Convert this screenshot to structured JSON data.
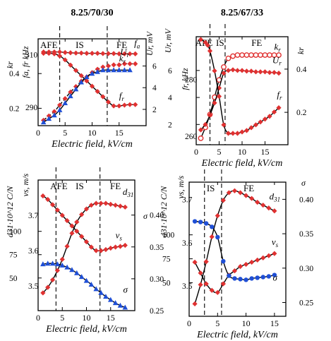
{
  "chart_data": [
    {
      "type": "line",
      "title": "8.25/70/30",
      "xlabel": "Electric field, kV/cm",
      "xlim": [
        0,
        20
      ],
      "xticks": [
        0,
        5,
        10,
        15
      ],
      "phases": [
        {
          "label": "AFE",
          "x": 2.0
        },
        {
          "label": "IS",
          "x": 7.7
        },
        {
          "label": "FE",
          "x": 15.5
        }
      ],
      "phase_boundaries": [
        4.0,
        12.8
      ],
      "axes": {
        "outer_left": {
          "label": "kr",
          "ylim": [
            0.1,
            0.6
          ],
          "ticks": [
            "0.2",
            "0.4"
          ],
          "tick_values": [
            0.2,
            0.4
          ]
        },
        "inner_left": {
          "label": "fa, fr kHz",
          "ylim": [
            283,
            316
          ],
          "ticks": [
            "290",
            "310"
          ],
          "tick_values": [
            290,
            310
          ]
        },
        "right": {
          "label": "Ur, mV",
          "ylim": [
            0.5,
            8.5
          ],
          "ticks": [
            "2",
            "4",
            "6"
          ],
          "tick_values": [
            2,
            4,
            6
          ]
        }
      },
      "series": [
        {
          "name": "fa",
          "axis": "inner_left",
          "marker": "diamond",
          "color": "#e03131",
          "curve": "fit",
          "x": [
            1,
            2,
            3,
            4,
            5,
            6,
            7,
            8,
            9,
            10,
            11,
            12,
            13,
            14,
            15,
            16,
            17,
            18
          ],
          "y": [
            311,
            311,
            311,
            311,
            310.8,
            310.7,
            310.6,
            310.6,
            310.5,
            310.5,
            310.5,
            310.4,
            310.4,
            310.4,
            310.3,
            310.3,
            310.3,
            310.3
          ]
        },
        {
          "name": "fr",
          "axis": "inner_left",
          "marker": "diamond",
          "color": "#e03131",
          "curve": "fit",
          "x": [
            1,
            2,
            3,
            4,
            5,
            6,
            7,
            8,
            9,
            10,
            11,
            12,
            13,
            14,
            15,
            16,
            17,
            18
          ],
          "y": [
            310.5,
            310.5,
            310.3,
            309.5,
            308,
            306,
            304,
            302,
            300,
            298,
            296,
            294,
            292,
            290.5,
            290.5,
            290.8,
            291,
            291
          ]
        },
        {
          "name": "Ur",
          "axis": "right",
          "marker": "diamond",
          "color": "#e03131",
          "curve": "dashed",
          "x": [
            1,
            2,
            3,
            4,
            5,
            6,
            7,
            8,
            9,
            10,
            11,
            12,
            13,
            14,
            15,
            16,
            17,
            18
          ],
          "y": [
            1.0,
            1.4,
            1.8,
            2.4,
            3.0,
            3.6,
            4.1,
            4.6,
            5.0,
            5.4,
            5.7,
            5.9,
            6.0,
            6.1,
            6.1,
            6.2,
            6.2,
            6.2
          ]
        },
        {
          "name": "kr",
          "axis": "outer_left",
          "marker": "triangle",
          "color": "#1f4fd6",
          "curve": "fit",
          "x": [
            1,
            2,
            3,
            4,
            5,
            6,
            7,
            8,
            9,
            10,
            11,
            12,
            13,
            14,
            15,
            16,
            17
          ],
          "y": [
            0.12,
            0.14,
            0.16,
            0.19,
            0.23,
            0.27,
            0.31,
            0.35,
            0.38,
            0.4,
            0.41,
            0.42,
            0.42,
            0.42,
            0.42,
            0.42,
            0.42
          ]
        }
      ],
      "series_labels": [
        {
          "series": "fa",
          "text": "f",
          "sub": "a",
          "x": 17.8,
          "y": 313.2,
          "axis": "inner_left"
        },
        {
          "series": "Ur",
          "text": "U",
          "sub": "r",
          "x": 15.2,
          "y": 7.0,
          "axis": "right"
        },
        {
          "series": "kr",
          "text": "k",
          "sub": "r",
          "x": 15.0,
          "y": 0.47,
          "axis": "outer_left"
        },
        {
          "series": "fr",
          "text": "f",
          "sub": "r",
          "x": 15.0,
          "y": 293.2,
          "axis": "inner_left"
        }
      ]
    },
    {
      "type": "line",
      "title": "8.25/67/33",
      "xlabel": "Electric field, kV/cm",
      "xlim": [
        0,
        20
      ],
      "xticks": [
        0,
        5,
        10,
        15
      ],
      "phases": [
        {
          "label": "AFE",
          "x": 1.7
        },
        {
          "label": "IS",
          "x": 5.2
        },
        {
          "label": "FE",
          "x": 13.2
        }
      ],
      "phase_boundaries": [
        3.0,
        6.3
      ],
      "axes": {
        "outer_left": {
          "label": "Ur, mV",
          "ylim": [
            0.5,
            8.5
          ],
          "ticks": [
            "2",
            "4",
            "6"
          ],
          "tick_values": [
            2,
            4,
            6
          ]
        },
        "inner_left": {
          "label": "fr, kHz",
          "ylim": [
            257,
            295
          ],
          "ticks": [
            "260",
            "280"
          ],
          "tick_values": [
            260,
            280
          ]
        },
        "right": {
          "label": "kr",
          "ylim": [
            0.05,
            0.55
          ],
          "ticks": [
            "0.2",
            "0.4"
          ],
          "tick_values": [
            0.2,
            0.4
          ]
        }
      },
      "series": [
        {
          "name": "kr",
          "axis": "right",
          "marker": "circle-open",
          "color": "#e03131",
          "curve": "fit",
          "x": [
            1,
            2,
            3,
            4,
            5,
            6,
            7,
            8,
            9,
            10,
            11,
            12,
            13,
            14,
            15,
            16,
            17,
            18
          ],
          "y": [
            0.08,
            0.13,
            0.19,
            0.27,
            0.35,
            0.41,
            0.45,
            0.46,
            0.465,
            0.465,
            0.465,
            0.465,
            0.465,
            0.465,
            0.465,
            0.465,
            0.465,
            0.465
          ]
        },
        {
          "name": "Ur",
          "axis": "outer_left",
          "marker": "diamond",
          "color": "#e03131",
          "curve": "fit",
          "x": [
            1,
            2,
            3,
            4,
            5,
            6,
            7,
            8,
            9,
            10,
            11,
            12,
            13,
            14,
            15,
            16,
            17,
            18
          ],
          "y": [
            1.6,
            2.0,
            2.7,
            3.6,
            4.7,
            5.8,
            6.0,
            6.05,
            6.0,
            6.0,
            5.95,
            5.95,
            5.9,
            5.9,
            5.9,
            5.85,
            5.85,
            5.8
          ]
        },
        {
          "name": "fr",
          "axis": "inner_left",
          "marker": "diamond",
          "color": "#e03131",
          "curve": "fit",
          "x": [
            1,
            2,
            2.5,
            3,
            4,
            5,
            6,
            7,
            8,
            9,
            10,
            11,
            12,
            13,
            14,
            15,
            16,
            17,
            18
          ],
          "y": [
            294,
            293,
            292,
            290,
            283,
            274,
            264,
            261,
            261,
            261,
            261.5,
            262,
            263,
            264,
            265,
            266,
            267,
            268.5,
            270
          ]
        }
      ],
      "series_labels": [
        {
          "series": "kr",
          "text": "k",
          "sub": "r",
          "x": 17.0,
          "y": 0.49,
          "axis": "right"
        },
        {
          "series": "Ur",
          "text": "U",
          "sub": "r",
          "x": 16.6,
          "y": 6.55,
          "axis": "outer_left"
        },
        {
          "series": "fr",
          "text": "f",
          "sub": "r",
          "x": 17.6,
          "y": 273.5,
          "axis": "inner_left"
        }
      ]
    },
    {
      "type": "line",
      "title": "",
      "xlabel": "Electric field, kV/cm",
      "xlim": [
        0,
        20
      ],
      "xticks": [
        0,
        5,
        10,
        15
      ],
      "phases": [
        {
          "label": "AFE",
          "x": 4.3
        },
        {
          "label": "IS",
          "x": 8.6
        },
        {
          "label": "FE",
          "x": 16.0
        }
      ],
      "phase_boundaries": [
        3.7,
        12.8
      ],
      "axes": {
        "outer_left": {
          "label": "d31·10^12 C/N",
          "ylim": [
            15,
            155
          ],
          "ticks": [
            "50",
            "75",
            "100"
          ],
          "tick_values": [
            50,
            75,
            100
          ]
        },
        "inner_left": {
          "label": "vs, m/s",
          "ylim": [
            3.43,
            3.8
          ],
          "ticks": [
            "3.5",
            "3.6",
            "3.7"
          ],
          "tick_values": [
            3.5,
            3.6,
            3.7
          ]
        },
        "right": {
          "label": "σ",
          "ylim": [
            0.25,
            0.455
          ],
          "ticks": [
            "0.25",
            "0.30",
            "0.35",
            "0.40"
          ],
          "tick_values": [
            0.25,
            0.3,
            0.35,
            0.4
          ]
        }
      },
      "series": [
        {
          "name": "d31",
          "axis": "outer_left",
          "marker": "diamond",
          "color": "#e03131",
          "curve": "fit",
          "x": [
            1,
            2,
            3,
            4,
            5,
            6,
            7,
            8,
            9,
            10,
            11,
            12,
            13,
            14,
            15,
            16,
            17,
            18
          ],
          "y": [
            34,
            40,
            48,
            58,
            70,
            84,
            98,
            110,
            118,
            124,
            128,
            130,
            130,
            130,
            129,
            128,
            127,
            126
          ]
        },
        {
          "name": "vs",
          "axis": "inner_left",
          "marker": "diamond",
          "color": "#e03131",
          "curve": "fit",
          "x": [
            1,
            2,
            3,
            4,
            5,
            6,
            7,
            8,
            9,
            10,
            11,
            12,
            13,
            14,
            15,
            16,
            17,
            18
          ],
          "y": [
            3.755,
            3.745,
            3.73,
            3.715,
            3.7,
            3.685,
            3.67,
            3.655,
            3.64,
            3.625,
            3.61,
            3.6,
            3.6,
            3.603,
            3.607,
            3.61,
            3.612,
            3.615
          ]
        },
        {
          "name": "σ",
          "axis": "right",
          "marker": "triangle",
          "color": "#1f4fd6",
          "curve": "fit",
          "x": [
            1,
            2,
            3,
            4,
            5,
            6,
            7,
            8,
            9,
            10,
            11,
            12,
            13,
            14,
            15,
            16,
            17,
            18
          ],
          "y": [
            0.323,
            0.324,
            0.324,
            0.323,
            0.321,
            0.318,
            0.314,
            0.309,
            0.303,
            0.297,
            0.291,
            0.284,
            0.278,
            0.272,
            0.267,
            0.262,
            0.258,
            0.255
          ]
        }
      ],
      "series_labels": [
        {
          "series": "d31",
          "text": "d",
          "sub": "31",
          "x": 17.5,
          "y": 139,
          "axis": "outer_left"
        },
        {
          "series": "vs",
          "text": "v",
          "sub": "s",
          "x": 16.0,
          "y": 3.635,
          "axis": "inner_left"
        },
        {
          "series": "σ",
          "text": "σ",
          "sub": "",
          "x": 17.6,
          "y": 0.278,
          "axis": "right"
        }
      ]
    },
    {
      "type": "line",
      "title": "",
      "xlabel": "Electric field, kV/cm",
      "xlim": [
        0,
        17
      ],
      "xticks": [
        0,
        5,
        10,
        15
      ],
      "phases": [
        {
          "label": "IS",
          "x": 3.8
        },
        {
          "label": "FE",
          "x": 10.5
        }
      ],
      "phase_boundaries": [
        2.7,
        5.7
      ],
      "axes": {
        "outer_left": {
          "label": "d31·10^12 C/N",
          "ylim": [
            15,
            155
          ],
          "ticks": [
            "50",
            "75",
            "100"
          ],
          "tick_values": [
            50,
            75,
            100
          ]
        },
        "inner_left": {
          "label": "vs, m/s",
          "ylim": [
            3.43,
            3.74
          ],
          "ticks": [
            "3.5",
            "3.6",
            "3.7"
          ],
          "tick_values": [
            3.5,
            3.6,
            3.7
          ]
        },
        "right": {
          "label": "σ",
          "ylim": [
            0.23,
            0.425
          ],
          "ticks": [
            "0.25",
            "0.30",
            "0.35",
            "0.40"
          ],
          "tick_values": [
            0.25,
            0.3,
            0.35,
            0.4
          ]
        }
      },
      "series": [
        {
          "name": "d31",
          "axis": "outer_left",
          "marker": "diamond",
          "color": "#e03131",
          "curve": "fit",
          "x": [
            1,
            2,
            3,
            4,
            5,
            6,
            7,
            8,
            9,
            10,
            11,
            12,
            13,
            14,
            15
          ],
          "y": [
            28,
            48,
            72,
            98,
            120,
            136,
            144,
            146,
            144,
            141,
            138,
            134,
            131,
            128,
            125
          ]
        },
        {
          "name": "vs",
          "axis": "inner_left",
          "marker": "diamond",
          "color": "#e03131",
          "curve": "fit",
          "x": [
            1,
            2,
            3,
            4,
            5,
            6,
            7,
            8,
            9,
            10,
            11,
            12,
            13,
            14,
            15
          ],
          "y": [
            3.555,
            3.53,
            3.505,
            3.49,
            3.485,
            3.505,
            3.525,
            3.535,
            3.545,
            3.55,
            3.555,
            3.56,
            3.565,
            3.57,
            3.575
          ]
        },
        {
          "name": "σ",
          "axis": "right",
          "marker": "circle",
          "color": "#1f4fd6",
          "curve": "fit",
          "x": [
            1,
            2,
            3,
            4,
            5,
            6,
            7,
            8,
            9,
            10,
            11,
            12,
            13,
            14,
            15
          ],
          "y": [
            0.368,
            0.367,
            0.365,
            0.36,
            0.345,
            0.31,
            0.289,
            0.285,
            0.284,
            0.283,
            0.285,
            0.286,
            0.287,
            0.288,
            0.29
          ]
        }
      ],
      "series_labels": [
        {
          "series": "d31",
          "text": "d",
          "sub": "31",
          "x": 14.1,
          "y": 137,
          "axis": "outer_left"
        },
        {
          "series": "vs",
          "text": "v",
          "sub": "s",
          "x": 14.5,
          "y": 3.595,
          "axis": "inner_left"
        },
        {
          "series": "σ",
          "text": "σ",
          "sub": "",
          "x": 14.7,
          "y": 0.282,
          "axis": "right"
        }
      ]
    }
  ],
  "colors": {
    "red": "#e03131",
    "blue": "#1f4fd6",
    "axis": "#000000"
  }
}
